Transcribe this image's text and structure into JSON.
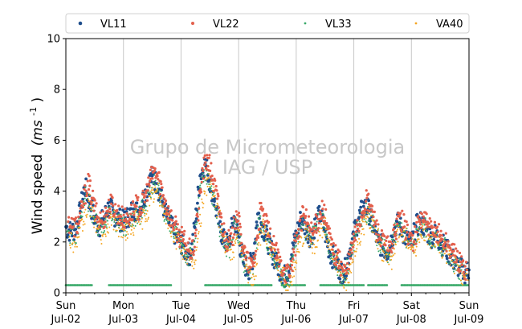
{
  "chart_data": {
    "type": "scatter",
    "title": "",
    "xlabel": "",
    "ylabel": "Wind speed",
    "ylabel_math": "(ms",
    "ylabel_exponent": "-1",
    "ylabel_close": " )",
    "x_range": [
      "2023-07-02",
      "2023-07-09"
    ],
    "ylim": [
      0,
      10
    ],
    "y_ticks": [
      0,
      2,
      4,
      6,
      8,
      10
    ],
    "grid": "vertical at day boundaries",
    "legend_position": "top (above plot)",
    "x_ticks": [
      {
        "day": "Sun",
        "date": "Jul-02"
      },
      {
        "day": "Mon",
        "date": "Jul-03"
      },
      {
        "day": "Tue",
        "date": "Jul-04"
      },
      {
        "day": "Wed",
        "date": "Jul-05"
      },
      {
        "day": "Thu",
        "date": "Jul-06"
      },
      {
        "day": "Fri",
        "date": "Jul-07"
      },
      {
        "day": "Sat",
        "date": "Jul-08"
      },
      {
        "day": "Sun",
        "date": "Jul-09"
      }
    ],
    "watermark": [
      "Grupo de Micrometeorologia",
      "IAG / USP"
    ],
    "series": [
      {
        "name": "VL11",
        "color": "#1f4e8c",
        "marker_size": "large",
        "x_days": [
          0.0,
          0.08,
          0.17,
          0.25,
          0.33,
          0.42,
          0.5,
          0.58,
          0.67,
          0.75,
          0.83,
          0.92,
          1.0,
          1.08,
          1.17,
          1.25,
          1.33,
          1.42,
          1.5,
          1.58,
          1.67,
          1.75,
          1.83,
          1.92,
          2.0,
          2.08,
          2.17,
          2.25,
          2.33,
          2.42,
          2.5,
          2.58,
          2.67,
          2.75,
          2.83,
          2.92,
          3.0,
          3.08,
          3.17,
          3.25,
          3.33,
          3.42,
          3.5,
          3.58,
          3.67,
          3.75,
          3.83,
          3.92,
          4.0,
          4.08,
          4.17,
          4.25,
          4.33,
          4.42,
          4.5,
          4.58,
          4.67,
          4.75,
          4.83,
          4.92,
          5.0,
          5.08,
          5.17,
          5.25,
          5.33,
          5.42,
          5.5,
          5.58,
          5.67,
          5.75,
          5.83,
          5.92,
          6.0,
          6.08,
          6.17,
          6.25,
          6.33,
          6.42,
          6.5,
          6.58,
          6.67,
          6.75,
          6.83,
          6.92,
          7.0
        ],
        "values": [
          2.6,
          2.4,
          2.5,
          3.2,
          4.2,
          3.5,
          2.9,
          2.6,
          3.0,
          3.4,
          3.1,
          2.9,
          2.8,
          3.0,
          3.3,
          3.2,
          3.6,
          4.2,
          4.6,
          4.3,
          3.6,
          3.0,
          2.6,
          2.2,
          2.0,
          1.6,
          1.5,
          2.8,
          4.6,
          5.1,
          4.4,
          3.6,
          2.6,
          2.0,
          1.9,
          3.0,
          2.2,
          1.2,
          0.9,
          1.4,
          3.1,
          2.6,
          2.1,
          1.6,
          1.1,
          0.8,
          0.6,
          1.5,
          2.3,
          2.9,
          2.5,
          2.2,
          2.7,
          3.1,
          2.4,
          1.6,
          1.3,
          0.9,
          0.7,
          1.6,
          2.3,
          2.9,
          3.4,
          3.3,
          2.6,
          2.0,
          1.8,
          1.6,
          2.2,
          2.8,
          2.5,
          2.1,
          1.9,
          2.6,
          2.8,
          2.5,
          2.2,
          2.3,
          2.0,
          1.8,
          1.5,
          1.2,
          1.0,
          0.8,
          0.9
        ]
      },
      {
        "name": "VL22",
        "color": "#e3604d",
        "marker_size": "medium",
        "x_days": [
          0.04,
          0.13,
          0.21,
          0.29,
          0.38,
          0.46,
          0.54,
          0.63,
          0.71,
          0.79,
          0.88,
          0.96,
          1.04,
          1.13,
          1.21,
          1.29,
          1.38,
          1.46,
          1.54,
          1.63,
          1.71,
          1.79,
          1.88,
          1.96,
          2.04,
          2.13,
          2.21,
          2.29,
          2.38,
          2.46,
          2.54,
          2.63,
          2.71,
          2.79,
          2.88,
          2.96,
          3.04,
          3.13,
          3.21,
          3.29,
          3.38,
          3.46,
          3.54,
          3.63,
          3.71,
          3.79,
          3.88,
          3.96,
          4.04,
          4.13,
          4.21,
          4.29,
          4.38,
          4.46,
          4.54,
          4.63,
          4.71,
          4.79,
          4.88,
          4.96,
          5.04,
          5.13,
          5.21,
          5.29,
          5.38,
          5.46,
          5.54,
          5.63,
          5.71,
          5.79,
          5.88,
          5.96,
          6.04,
          6.13,
          6.21,
          6.29,
          6.38,
          6.46,
          6.54,
          6.63,
          6.71,
          6.79,
          6.88,
          6.96
        ],
        "values": [
          2.8,
          2.6,
          2.7,
          3.4,
          4.4,
          3.7,
          3.0,
          2.8,
          3.2,
          3.5,
          3.2,
          3.0,
          2.9,
          3.1,
          3.4,
          3.3,
          3.8,
          4.4,
          4.8,
          4.4,
          3.7,
          3.1,
          2.7,
          2.3,
          2.1,
          1.7,
          1.6,
          3.0,
          4.8,
          5.3,
          4.6,
          3.7,
          2.7,
          2.1,
          2.0,
          3.2,
          2.3,
          1.3,
          1.0,
          1.5,
          3.3,
          2.8,
          2.2,
          1.7,
          1.2,
          0.9,
          0.7,
          1.6,
          2.5,
          3.1,
          2.7,
          2.3,
          2.9,
          3.3,
          2.6,
          1.7,
          1.4,
          1.0,
          0.8,
          1.7,
          2.4,
          3.0,
          3.6,
          3.4,
          2.7,
          2.1,
          1.9,
          1.7,
          2.3,
          3.0,
          2.6,
          2.2,
          2.0,
          2.8,
          3.0,
          2.6,
          2.3,
          2.4,
          2.1,
          1.9,
          1.6,
          1.3,
          1.1,
          0.9
        ]
      },
      {
        "name": "VL33",
        "color": "#3aaa6a",
        "marker_size": "small",
        "x_days": [
          0.02,
          0.1,
          0.19,
          0.27,
          0.35,
          0.44,
          0.52,
          0.6,
          0.69,
          0.77,
          0.85,
          0.94,
          1.02,
          1.1,
          1.19,
          1.27,
          1.35,
          1.44,
          1.52,
          1.6,
          1.69,
          1.77,
          1.85,
          1.94,
          2.02,
          2.1,
          2.19,
          2.27,
          2.35,
          2.44,
          2.52,
          2.6,
          2.69,
          2.77,
          2.85,
          2.94,
          3.02,
          3.1,
          3.19,
          3.27,
          3.35,
          3.44,
          3.52,
          3.6,
          3.69,
          3.77,
          3.85,
          3.94,
          4.02,
          4.1,
          4.19,
          4.27,
          4.35,
          4.44,
          4.52,
          4.6,
          4.69,
          4.77,
          4.85,
          4.94,
          5.02,
          5.1,
          5.19,
          5.27,
          5.35,
          5.44,
          5.52,
          5.6,
          5.69,
          5.77,
          5.85,
          5.94,
          6.02,
          6.1,
          6.19,
          6.27,
          6.35,
          6.44,
          6.52,
          6.6,
          6.69,
          6.77,
          6.85,
          6.94
        ],
        "values": [
          2.4,
          2.3,
          2.4,
          3.0,
          3.9,
          3.3,
          2.7,
          2.5,
          2.9,
          3.2,
          2.9,
          2.7,
          2.6,
          2.9,
          3.1,
          3.0,
          3.4,
          4.0,
          4.3,
          4.0,
          3.4,
          2.8,
          2.4,
          2.1,
          1.9,
          1.5,
          1.4,
          2.7,
          4.3,
          4.8,
          4.1,
          3.4,
          2.4,
          1.9,
          1.8,
          2.8,
          2.0,
          1.1,
          0.8,
          1.3,
          2.9,
          2.4,
          2.0,
          1.5,
          1.0,
          0.7,
          0.5,
          1.4,
          2.2,
          2.7,
          2.4,
          2.1,
          2.6,
          2.9,
          2.3,
          1.5,
          1.2,
          0.8,
          0.6,
          1.5,
          2.2,
          2.8,
          3.2,
          3.1,
          2.5,
          1.9,
          1.7,
          1.5,
          2.1,
          2.7,
          2.4,
          2.0,
          1.8,
          2.5,
          2.7,
          2.4,
          2.1,
          2.2,
          1.9,
          1.7,
          1.4,
          1.1,
          0.9,
          0.7
        ],
        "baseline_value": 0.3,
        "baseline_segments": [
          [
            0.0,
            0.45
          ],
          [
            0.75,
            1.83
          ],
          [
            2.42,
            3.58
          ],
          [
            3.75,
            4.17
          ],
          [
            4.42,
            5.17
          ],
          [
            5.25,
            5.58
          ],
          [
            5.83,
            7.0
          ]
        ]
      },
      {
        "name": "VA40",
        "color": "#f5a623",
        "marker_size": "small",
        "x_days": [
          0.06,
          0.15,
          0.23,
          0.31,
          0.4,
          0.48,
          0.56,
          0.65,
          0.73,
          0.81,
          0.9,
          0.98,
          1.06,
          1.15,
          1.23,
          1.31,
          1.4,
          1.48,
          1.56,
          1.65,
          1.73,
          1.81,
          1.9,
          1.98,
          2.06,
          2.15,
          2.23,
          2.31,
          2.4,
          2.48,
          2.56,
          2.65,
          2.73,
          2.81,
          2.9,
          2.98,
          3.06,
          3.15,
          3.23,
          3.31,
          3.4,
          3.48,
          3.56,
          3.65,
          3.73,
          3.81,
          3.9,
          3.98,
          4.06,
          4.15,
          4.23,
          4.31,
          4.4,
          4.48,
          4.56,
          4.65,
          4.73,
          4.81,
          4.9,
          4.98,
          5.06,
          5.15,
          5.23,
          5.31,
          5.4,
          5.48,
          5.56,
          5.65,
          5.73,
          5.81,
          5.9,
          5.98,
          6.06,
          6.15,
          6.23,
          6.31,
          6.4,
          6.48,
          6.56,
          6.65,
          6.73,
          6.81,
          6.9,
          6.98
        ],
        "values": [
          2.2,
          2.0,
          2.2,
          2.8,
          3.6,
          3.0,
          2.5,
          2.3,
          2.7,
          3.0,
          2.7,
          2.5,
          2.4,
          2.6,
          2.9,
          2.8,
          3.1,
          3.7,
          4.0,
          3.7,
          3.1,
          2.6,
          2.2,
          1.9,
          1.7,
          1.3,
          1.2,
          2.4,
          4.0,
          4.5,
          3.8,
          3.1,
          2.2,
          1.7,
          1.6,
          2.5,
          1.8,
          0.9,
          0.6,
          1.1,
          2.6,
          2.2,
          1.8,
          1.3,
          0.8,
          0.5,
          0.4,
          1.2,
          2.0,
          2.5,
          2.2,
          1.9,
          2.4,
          2.7,
          2.1,
          1.3,
          1.0,
          0.6,
          0.4,
          1.3,
          2.0,
          2.5,
          3.0,
          2.9,
          2.3,
          1.7,
          1.5,
          1.3,
          1.9,
          2.5,
          2.2,
          1.8,
          1.6,
          2.3,
          2.5,
          2.2,
          1.9,
          2.0,
          1.7,
          1.5,
          1.2,
          0.9,
          0.7,
          0.5
        ]
      }
    ]
  }
}
